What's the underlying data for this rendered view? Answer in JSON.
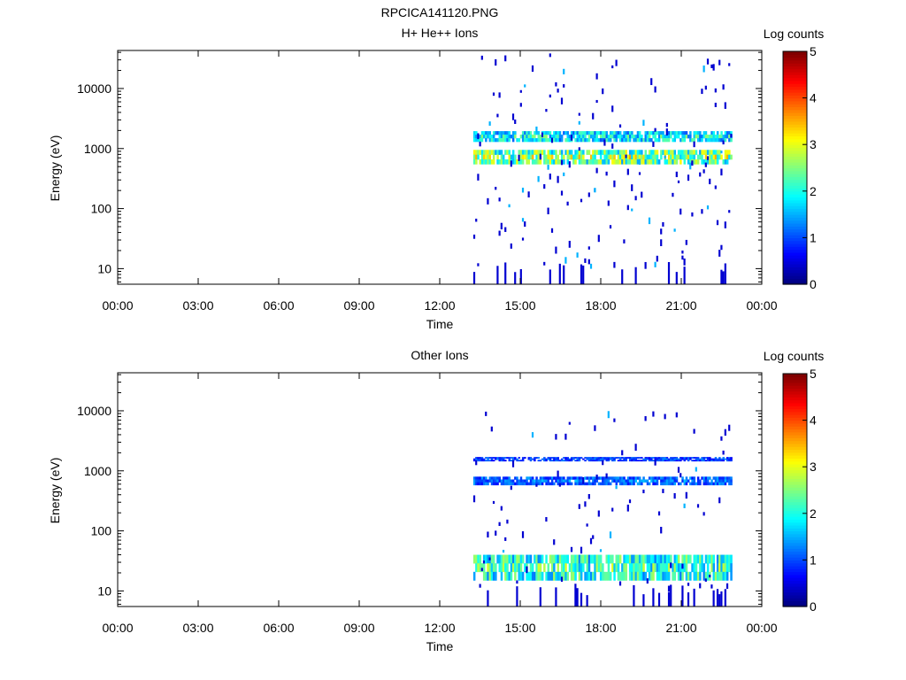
{
  "figure_title": "RPCICA141120.PNG",
  "chart_data": [
    {
      "type": "heatmap",
      "title": "H+ He++ Ions",
      "xlabel": "Time",
      "ylabel": "Energy (eV)",
      "x_ticks": [
        "00:00",
        "03:00",
        "06:00",
        "09:00",
        "12:00",
        "15:00",
        "18:00",
        "21:00",
        "00:00"
      ],
      "x_range_hours": [
        0,
        24
      ],
      "y_scale": "log",
      "y_range": [
        5.5,
        43000
      ],
      "y_ticks": [
        {
          "value": 10,
          "label": "10"
        },
        {
          "value": 100,
          "label": "100"
        },
        {
          "value": 1000,
          "label": "1000"
        },
        {
          "value": 10000,
          "label": "10000"
        }
      ],
      "data_coverage_hours": [
        13.25,
        22.85
      ],
      "bands": [
        {
          "energy_range_eV": [
            1300,
            1950
          ],
          "level": 1.9
        },
        {
          "energy_range_eV": [
            550,
            950
          ],
          "level": 2.6
        }
      ],
      "sparse_max_energy_eV": 40000,
      "colorbar": {
        "label": "Log counts",
        "min": 0,
        "max": 5,
        "ticks": [
          "0",
          "1",
          "2",
          "3",
          "4",
          "5"
        ]
      }
    },
    {
      "type": "heatmap",
      "title": "Other Ions",
      "xlabel": "Time",
      "ylabel": "Energy (eV)",
      "x_ticks": [
        "00:00",
        "03:00",
        "06:00",
        "09:00",
        "12:00",
        "15:00",
        "18:00",
        "21:00",
        "00:00"
      ],
      "x_range_hours": [
        0,
        24
      ],
      "y_scale": "log",
      "y_range": [
        5.5,
        43000
      ],
      "y_ticks": [
        {
          "value": 10,
          "label": "10"
        },
        {
          "value": 100,
          "label": "100"
        },
        {
          "value": 1000,
          "label": "1000"
        },
        {
          "value": 10000,
          "label": "10000"
        }
      ],
      "data_coverage_hours": [
        13.25,
        22.85
      ],
      "bands": [
        {
          "energy_range_eV": [
            1450,
            1700
          ],
          "level": 1.0
        },
        {
          "energy_range_eV": [
            580,
            800
          ],
          "level": 1.2
        },
        {
          "energy_range_eV": [
            15,
            40
          ],
          "level": 2.2
        }
      ],
      "sparse_max_energy_eV": 10000,
      "colorbar": {
        "label": "Log counts",
        "min": 0,
        "max": 5,
        "ticks": [
          "0",
          "1",
          "2",
          "3",
          "4",
          "5"
        ]
      }
    }
  ]
}
